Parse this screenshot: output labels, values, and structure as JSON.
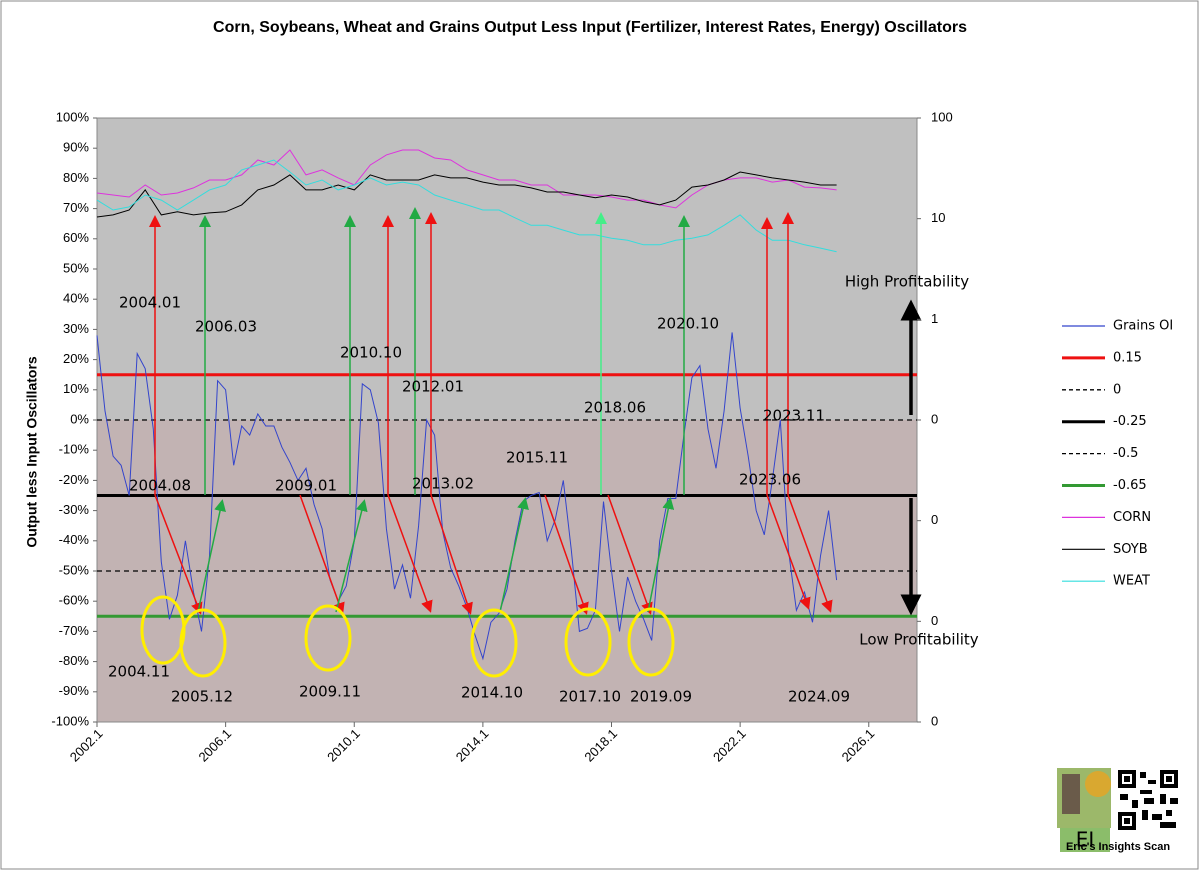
{
  "chart_data": {
    "type": "line",
    "title": "Corn, Soybeans, Wheat and Grains Output Less Input (Fertilizer, Interest Rates, Energy) Oscillators",
    "y_label": "Output less Input Oscillators",
    "xlim": [
      2002,
      2027.5
    ],
    "xticks": [
      {
        "value": 2002,
        "label": "2002.1"
      },
      {
        "value": 2006,
        "label": "2006.1"
      },
      {
        "value": 2010,
        "label": "2010.1"
      },
      {
        "value": 2014,
        "label": "2014.1"
      },
      {
        "value": 2018,
        "label": "2018.1"
      },
      {
        "value": 2022,
        "label": "2022.1"
      },
      {
        "value": 2026,
        "label": "2026.1"
      }
    ],
    "ylim": [
      -100,
      100
    ],
    "yticks": [
      {
        "value": 100,
        "label": "100%"
      },
      {
        "value": 90,
        "label": "90%"
      },
      {
        "value": 80,
        "label": "80%"
      },
      {
        "value": 70,
        "label": "70%"
      },
      {
        "value": 60,
        "label": "60%"
      },
      {
        "value": 50,
        "label": "50%"
      },
      {
        "value": 40,
        "label": "40%"
      },
      {
        "value": 30,
        "label": "30%"
      },
      {
        "value": 20,
        "label": "20%"
      },
      {
        "value": 10,
        "label": "10%"
      },
      {
        "value": 0,
        "label": "0%"
      },
      {
        "value": -10,
        "label": "-10%"
      },
      {
        "value": -20,
        "label": "-20%"
      },
      {
        "value": -30,
        "label": "-30%"
      },
      {
        "value": -40,
        "label": "-40%"
      },
      {
        "value": -50,
        "label": "-50%"
      },
      {
        "value": -60,
        "label": "-60%"
      },
      {
        "value": -70,
        "label": "-70%"
      },
      {
        "value": -80,
        "label": "-80%"
      },
      {
        "value": -90,
        "label": "-90%"
      },
      {
        "value": -100,
        "label": "-100%"
      }
    ],
    "y2lim": [
      0.0001,
      100
    ],
    "y2_scale": "log",
    "y2ticks": [
      100,
      10,
      1,
      {
        "value": 0.1,
        "label": "0"
      },
      {
        "value": 0.01,
        "label": "0"
      },
      {
        "value": 0.001,
        "label": "0"
      },
      {
        "value": 0.0001,
        "label": "0"
      }
    ],
    "legend": "right",
    "series": [
      {
        "name": "Grains OI",
        "color": "#3344cc",
        "width": 1,
        "x": [
          2002,
          2002.25,
          2002.5,
          2002.75,
          2003,
          2003.25,
          2003.5,
          2003.75,
          2004,
          2004.25,
          2004.5,
          2004.75,
          2005,
          2005.25,
          2005.5,
          2005.75,
          2006,
          2006.25,
          2006.5,
          2006.75,
          2007,
          2007.25,
          2007.5,
          2007.75,
          2008,
          2008.25,
          2008.5,
          2008.75,
          2009,
          2009.25,
          2009.5,
          2009.75,
          2010,
          2010.25,
          2010.5,
          2010.75,
          2011,
          2011.25,
          2011.5,
          2011.75,
          2012,
          2012.25,
          2012.5,
          2012.75,
          2013,
          2013.25,
          2013.5,
          2013.75,
          2014,
          2014.25,
          2014.5,
          2014.75,
          2015,
          2015.25,
          2015.5,
          2015.75,
          2016,
          2016.25,
          2016.5,
          2016.75,
          2017,
          2017.25,
          2017.5,
          2017.75,
          2018,
          2018.25,
          2018.5,
          2018.75,
          2019,
          2019.25,
          2019.5,
          2019.75,
          2020,
          2020.25,
          2020.5,
          2020.75,
          2021,
          2021.25,
          2021.5,
          2021.75,
          2022,
          2022.25,
          2022.5,
          2022.75,
          2023,
          2023.25,
          2023.5,
          2023.75,
          2024,
          2024.25,
          2024.5,
          2024.75,
          2025
        ],
        "values": [
          28,
          3,
          -12,
          -15,
          -25,
          22,
          17,
          -3,
          -47,
          -66,
          -58,
          -40,
          -57,
          -70,
          -45,
          13,
          10,
          -15,
          -2,
          -5,
          2,
          -2,
          -2,
          -9,
          -14,
          -20,
          -16,
          -28,
          -36,
          -53,
          -60,
          -55,
          -40,
          12,
          10,
          -1,
          -36,
          -56,
          -48,
          -59,
          -35,
          0,
          -5,
          -37,
          -49,
          -55,
          -62,
          -71,
          -79,
          -67,
          -64,
          -56,
          -40,
          -27,
          -25,
          -24,
          -40,
          -33,
          -20,
          -43,
          -70,
          -69,
          -63,
          -27,
          -50,
          -70,
          -52,
          -60,
          -66,
          -73,
          -40,
          -26,
          -26,
          -5,
          14,
          18,
          -3,
          -16,
          3,
          29,
          4,
          -12,
          -30,
          -38,
          -20,
          0,
          -43,
          -63,
          -57,
          -67,
          -45,
          -30,
          -53
        ]
      },
      {
        "name": "CORN",
        "color": "#dd33dd",
        "width": 1,
        "axis": "y2",
        "x": [
          2002,
          2002.5,
          2003,
          2003.5,
          2004,
          2004.5,
          2005,
          2005.5,
          2006,
          2006.5,
          2007,
          2007.5,
          2008,
          2008.5,
          2009,
          2009.5,
          2010,
          2010.5,
          2011,
          2011.5,
          2012,
          2012.5,
          2013,
          2013.5,
          2014,
          2014.5,
          2015,
          2015.5,
          2016,
          2016.5,
          2017,
          2017.5,
          2018,
          2018.5,
          2019,
          2019.5,
          2020,
          2020.5,
          2021,
          2021.5,
          2022,
          2022.5,
          2023,
          2023.5,
          2024,
          2024.5,
          2025
        ],
        "values": [
          18.0,
          17.2,
          16.4,
          21.6,
          17.2,
          18.0,
          20.2,
          24.2,
          24.2,
          27.2,
          38.3,
          34.1,
          48.1,
          27.2,
          30.5,
          25.4,
          21.6,
          34.1,
          43.0,
          48.1,
          48.1,
          40.1,
          38.3,
          30.5,
          27.2,
          24.2,
          24.2,
          21.6,
          21.6,
          17.2,
          17.2,
          17.2,
          16.4,
          15.3,
          15.3,
          13.7,
          12.8,
          17.2,
          21.6,
          24.2,
          25.4,
          25.4,
          23.1,
          24.2,
          20.6,
          20.2,
          19.3
        ]
      },
      {
        "name": "SOYB",
        "color": "#000000",
        "width": 1,
        "axis": "y2",
        "x": [
          2002,
          2002.5,
          2003,
          2003.5,
          2004,
          2004.5,
          2005,
          2005.5,
          2006,
          2006.5,
          2007,
          2007.5,
          2008,
          2008.5,
          2009,
          2009.5,
          2010,
          2010.5,
          2011,
          2011.5,
          2012,
          2012.5,
          2013,
          2013.5,
          2014,
          2014.5,
          2015,
          2015.5,
          2016,
          2016.5,
          2017,
          2017.5,
          2018,
          2018.5,
          2019,
          2019.5,
          2020,
          2020.5,
          2021,
          2021.5,
          2022,
          2022.5,
          2023,
          2023.5,
          2024,
          2024.5,
          2025
        ],
        "values": [
          10.4,
          10.9,
          12.2,
          19.3,
          10.9,
          11.7,
          10.9,
          11.4,
          11.7,
          13.7,
          19.3,
          21.6,
          27.2,
          19.3,
          19.3,
          21.6,
          19.3,
          27.2,
          24.2,
          24.2,
          24.2,
          27.2,
          25.4,
          25.4,
          23.1,
          21.6,
          21.6,
          20.2,
          18.4,
          18.4,
          17.2,
          16.1,
          17.2,
          16.4,
          14.7,
          13.7,
          15.3,
          20.6,
          21.6,
          24.2,
          29.1,
          27.2,
          25.4,
          24.2,
          23.1,
          21.6,
          21.6
        ]
      },
      {
        "name": "WEAT",
        "color": "#33dddd",
        "width": 1,
        "axis": "y2",
        "x": [
          2002,
          2002.5,
          2003,
          2003.5,
          2004,
          2004.5,
          2005,
          2005.5,
          2006,
          2006.5,
          2007,
          2007.5,
          2008,
          2008.5,
          2009,
          2009.5,
          2010,
          2010.5,
          2011,
          2011.5,
          2012,
          2012.5,
          2013,
          2013.5,
          2014,
          2014.5,
          2015,
          2015.5,
          2016,
          2016.5,
          2017,
          2017.5,
          2018,
          2018.5,
          2019,
          2019.5,
          2020,
          2020.5,
          2021,
          2021.5,
          2022,
          2022.5,
          2023,
          2023.5,
          2024,
          2024.5,
          2025
        ],
        "values": [
          15.3,
          12.2,
          13.1,
          17.2,
          15.3,
          12.2,
          15.3,
          19.3,
          21.6,
          30.5,
          34.1,
          38.3,
          29.1,
          21.6,
          24.2,
          19.3,
          21.6,
          25.4,
          21.6,
          23.1,
          21.6,
          17.2,
          15.3,
          13.7,
          12.2,
          12.2,
          10.2,
          8.6,
          8.6,
          7.7,
          6.9,
          6.9,
          6.4,
          6.1,
          5.5,
          5.5,
          6.1,
          6.4,
          6.9,
          8.6,
          10.9,
          7.7,
          6.1,
          6.1,
          5.5,
          5.1,
          4.7
        ]
      }
    ],
    "reference_lines": [
      {
        "name": "0.15",
        "value": 15,
        "color": "#ee1111",
        "width": 3,
        "dash": false
      },
      {
        "name": "0",
        "value": 0,
        "color": "#000000",
        "width": 1.3,
        "dash": true
      },
      {
        "name": "-0.25",
        "value": -25,
        "color": "#000000",
        "width": 3,
        "dash": false
      },
      {
        "name": "-0.5",
        "value": -50,
        "color": "#000000",
        "width": 1.3,
        "dash": true
      },
      {
        "name": "-0.65",
        "value": -65,
        "color": "#339933",
        "width": 3,
        "dash": false
      }
    ],
    "annotations": [
      "2004.01",
      "2006.03",
      "2010.10",
      "2012.01",
      "2018.06",
      "2020.10",
      "2023.11",
      "2004.08",
      "2009.01",
      "2013.02",
      "2015.11",
      "2023.06",
      "2004.11",
      "2005.12",
      "2009.11",
      "2014.10",
      "2017.10",
      "2019.09",
      "2024.09",
      "High Profitability",
      "Low Profitability"
    ]
  },
  "logo": {
    "initials": "EI",
    "caption": "Eric's Insights  Scan"
  }
}
